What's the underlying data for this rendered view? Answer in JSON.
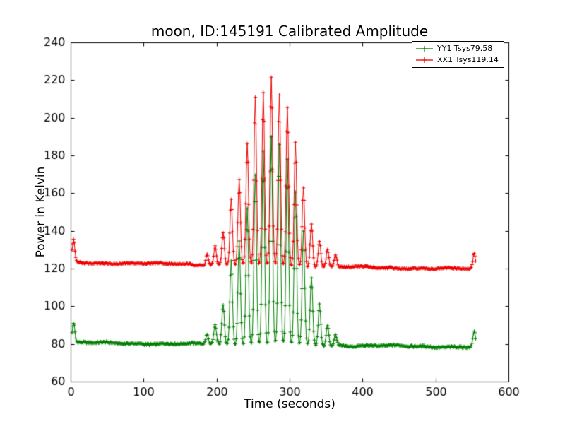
{
  "chart_data": {
    "type": "line",
    "title": "moon, ID:145191 Calibrated Amplitude",
    "xlabel": "Time (seconds)",
    "ylabel": "Power in Kelvin",
    "xlim": [
      0,
      600
    ],
    "ylim": [
      60,
      240
    ],
    "x_ticks": [
      0,
      100,
      200,
      300,
      400,
      500,
      600
    ],
    "y_ticks": [
      60,
      80,
      100,
      120,
      140,
      160,
      180,
      200,
      220,
      240
    ],
    "grid": false,
    "legend_position": "upper right",
    "marker": "plus",
    "dt": 1,
    "spike_sigma": 1.7,
    "series": [
      {
        "name": "YY1 Tsys79.58",
        "color": "#007f00",
        "t_start": 2,
        "t_end": 555,
        "baseline_start": 80.6,
        "baseline_end": 78.4,
        "noise": 0.55,
        "spikes": [
          [
            4,
            91
          ],
          [
            187,
            85
          ],
          [
            198,
            90
          ],
          [
            209,
            101
          ],
          [
            220,
            124
          ],
          [
            231,
            135
          ],
          [
            242,
            152
          ],
          [
            253,
            170
          ],
          [
            264,
            183
          ],
          [
            275,
            190
          ],
          [
            286,
            185
          ],
          [
            297,
            178
          ],
          [
            308,
            160
          ],
          [
            319,
            139
          ],
          [
            330,
            115
          ],
          [
            341,
            101
          ],
          [
            352,
            90
          ],
          [
            363,
            85
          ],
          [
            553,
            87
          ]
        ]
      },
      {
        "name": "XX1 Tsys119.14",
        "color": "#ee0000",
        "t_start": 2,
        "t_end": 555,
        "baseline_start": 123.3,
        "baseline_end": 119.6,
        "noise": 0.45,
        "spikes": [
          [
            4,
            135
          ],
          [
            187,
            128
          ],
          [
            198,
            132
          ],
          [
            209,
            139
          ],
          [
            220,
            157
          ],
          [
            231,
            167
          ],
          [
            242,
            186
          ],
          [
            253,
            211
          ],
          [
            264,
            213
          ],
          [
            275,
            221
          ],
          [
            286,
            212
          ],
          [
            297,
            206
          ],
          [
            308,
            187
          ],
          [
            319,
            163
          ],
          [
            330,
            144
          ],
          [
            341,
            135
          ],
          [
            352,
            130
          ],
          [
            363,
            127
          ],
          [
            553,
            128
          ]
        ]
      }
    ]
  }
}
